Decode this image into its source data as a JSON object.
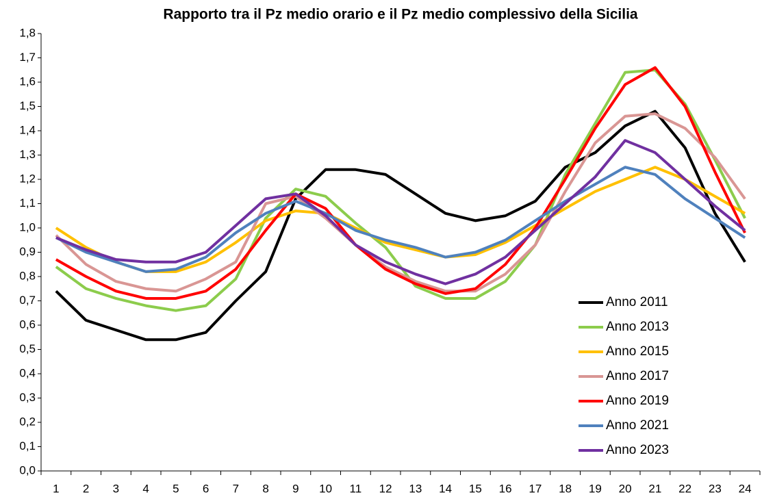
{
  "chart_data": {
    "type": "line",
    "title": "Rapporto tra il Pz medio orario e il Pz medio complessivo della Sicilia",
    "categories": [
      "1",
      "2",
      "3",
      "4",
      "5",
      "6",
      "7",
      "8",
      "9",
      "10",
      "11",
      "12",
      "13",
      "14",
      "15",
      "16",
      "17",
      "18",
      "19",
      "20",
      "21",
      "22",
      "23",
      "24"
    ],
    "series": [
      {
        "name": "Anno 2011",
        "color": "#000000",
        "values": [
          0.74,
          0.62,
          0.58,
          0.54,
          0.54,
          0.57,
          0.7,
          0.82,
          1.12,
          1.24,
          1.24,
          1.22,
          1.14,
          1.06,
          1.03,
          1.05,
          1.11,
          1.25,
          1.31,
          1.42,
          1.48,
          1.33,
          1.06,
          0.86
        ]
      },
      {
        "name": "Anno 2013",
        "color": "#8ccc4c",
        "values": [
          0.84,
          0.75,
          0.71,
          0.68,
          0.66,
          0.68,
          0.79,
          1.04,
          1.16,
          1.13,
          1.02,
          0.92,
          0.76,
          0.71,
          0.71,
          0.78,
          0.93,
          1.22,
          1.43,
          1.64,
          1.65,
          1.51,
          1.28,
          1.04
        ]
      },
      {
        "name": "Anno 2015",
        "color": "#ffc000",
        "values": [
          1.0,
          0.92,
          0.86,
          0.82,
          0.82,
          0.86,
          0.94,
          1.03,
          1.07,
          1.06,
          1.0,
          0.94,
          0.91,
          0.88,
          0.89,
          0.94,
          1.01,
          1.08,
          1.15,
          1.2,
          1.25,
          1.2,
          1.13,
          1.06
        ]
      },
      {
        "name": "Anno 2017",
        "color": "#d99694",
        "values": [
          0.97,
          0.85,
          0.78,
          0.75,
          0.74,
          0.79,
          0.86,
          1.1,
          1.13,
          1.04,
          0.93,
          0.84,
          0.78,
          0.74,
          0.74,
          0.81,
          0.93,
          1.15,
          1.35,
          1.46,
          1.47,
          1.41,
          1.29,
          1.12
        ]
      },
      {
        "name": "Anno 2019",
        "color": "#ff0000",
        "values": [
          0.87,
          0.8,
          0.74,
          0.71,
          0.71,
          0.74,
          0.83,
          0.99,
          1.14,
          1.08,
          0.93,
          0.83,
          0.77,
          0.73,
          0.75,
          0.85,
          1.0,
          1.2,
          1.41,
          1.59,
          1.66,
          1.5,
          1.23,
          0.98
        ]
      },
      {
        "name": "Anno 2021",
        "color": "#4f81bd",
        "values": [
          0.96,
          0.9,
          0.86,
          0.82,
          0.83,
          0.88,
          0.98,
          1.06,
          1.11,
          1.06,
          0.99,
          0.95,
          0.92,
          0.88,
          0.9,
          0.95,
          1.03,
          1.11,
          1.18,
          1.25,
          1.22,
          1.12,
          1.04,
          0.96
        ]
      },
      {
        "name": "Anno 2023",
        "color": "#7030a0",
        "values": [
          0.96,
          0.91,
          0.87,
          0.86,
          0.86,
          0.9,
          1.01,
          1.12,
          1.14,
          1.05,
          0.93,
          0.86,
          0.81,
          0.77,
          0.81,
          0.88,
          0.99,
          1.1,
          1.21,
          1.36,
          1.31,
          1.2,
          1.09,
          0.99
        ]
      }
    ],
    "ylim": [
      0,
      1.8
    ],
    "yticks": [
      {
        "value": 0,
        "label": "0,0"
      },
      {
        "value": 0.1,
        "label": "0,1"
      },
      {
        "value": 0.2,
        "label": "0,2"
      },
      {
        "value": 0.3,
        "label": "0,3"
      },
      {
        "value": 0.4,
        "label": "0,4"
      },
      {
        "value": 0.5,
        "label": "0,5"
      },
      {
        "value": 0.6,
        "label": "0,6"
      },
      {
        "value": 0.7,
        "label": "0,7"
      },
      {
        "value": 0.8,
        "label": "0,8"
      },
      {
        "value": 0.9,
        "label": "0,9"
      },
      {
        "value": 1.0,
        "label": "1,0"
      },
      {
        "value": 1.1,
        "label": "1,1"
      },
      {
        "value": 1.2,
        "label": "1,2"
      },
      {
        "value": 1.3,
        "label": "1,3"
      },
      {
        "value": 1.4,
        "label": "1,4"
      },
      {
        "value": 1.5,
        "label": "1,5"
      },
      {
        "value": 1.6,
        "label": "1,6"
      },
      {
        "value": 1.7,
        "label": "1,7"
      },
      {
        "value": 1.8,
        "label": "1,8"
      }
    ],
    "grid": false,
    "legend": "lower right"
  }
}
